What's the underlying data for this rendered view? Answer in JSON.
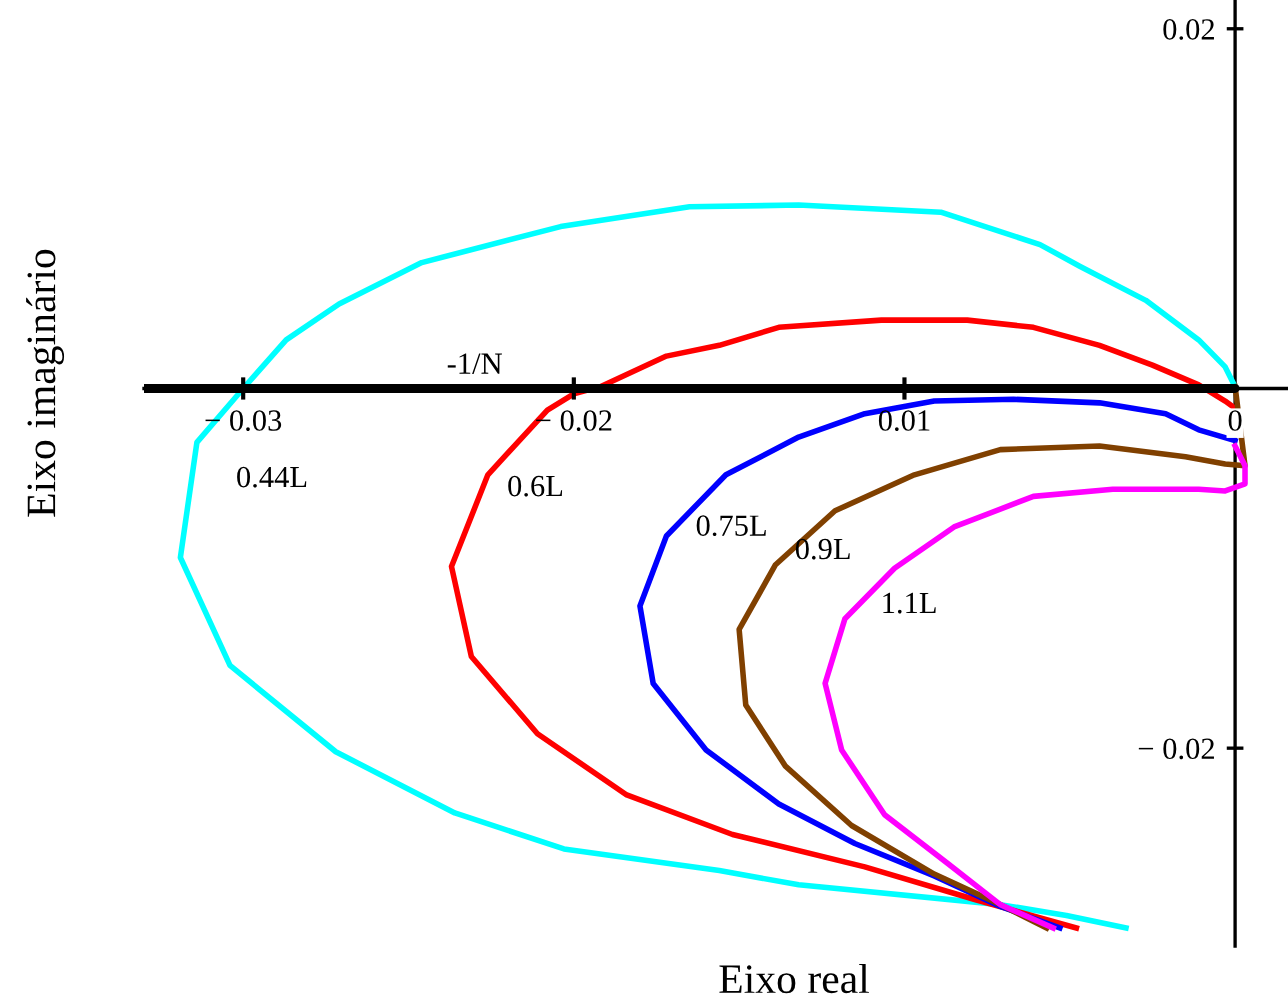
{
  "chart_data": {
    "type": "line",
    "xlabel": "Eixo real",
    "ylabel": "Eixo imaginário",
    "xlim": [
      -0.033,
      0.0016
    ],
    "ylim": [
      -0.031,
      0.0216
    ],
    "xticks": [
      {
        "value": -0.03,
        "label": "− 0.03"
      },
      {
        "value": -0.02,
        "label": "− 0.02"
      },
      {
        "value": -0.01,
        "label": "0.01"
      },
      {
        "value": 0,
        "label": "0"
      }
    ],
    "yticks": [
      {
        "value": -0.02,
        "label": "− 0.02"
      },
      {
        "value": 0.02,
        "label": "0.02"
      }
    ],
    "ref_lines": [
      {
        "axis": "y",
        "value": 0,
        "label": "-1/N",
        "color": "#000000"
      }
    ],
    "grid": false,
    "legend": false,
    "marker": "none",
    "line_style": "solid",
    "series": [
      {
        "name": "0.44L",
        "color": "#00ffff",
        "x": [
          0.0,
          -0.0003,
          -0.0011,
          -0.0027,
          -0.0047,
          -0.0059,
          -0.0089,
          -0.0132,
          -0.0165,
          -0.0204,
          -0.0246,
          -0.0271,
          -0.0287,
          -0.03,
          -0.0314,
          -0.0319,
          -0.0304,
          -0.0272,
          -0.0236,
          -0.0203,
          -0.0156,
          -0.0132,
          -0.0071,
          -0.0051,
          -0.0033
        ],
        "values": [
          0.0001,
          0.0012,
          0.0027,
          0.0049,
          0.0068,
          0.008,
          0.0098,
          0.0102,
          0.0101,
          0.009,
          0.007,
          0.0047,
          0.0027,
          0.0,
          -0.003,
          -0.0094,
          -0.0154,
          -0.0202,
          -0.0236,
          -0.0256,
          -0.0268,
          -0.0276,
          -0.0287,
          -0.0293,
          -0.03
        ]
      },
      {
        "name": "0.6L",
        "color": "#ff0000",
        "x": [
          0.0,
          -0.0003,
          -0.0011,
          -0.0025,
          -0.0041,
          -0.0061,
          -0.0081,
          -0.0107,
          -0.0138,
          -0.0156,
          -0.0172,
          -0.0192,
          -0.02,
          -0.0208,
          -0.0226,
          -0.0237,
          -0.0231,
          -0.0211,
          -0.0184,
          -0.0152,
          -0.0112,
          -0.0079,
          -0.0048
        ],
        "values": [
          -0.0011,
          -0.0007,
          0.0002,
          0.0013,
          0.0024,
          0.0034,
          0.0038,
          0.0038,
          0.0034,
          0.0024,
          0.0018,
          0.0001,
          -0.0003,
          -0.0012,
          -0.0048,
          -0.0099,
          -0.0149,
          -0.0192,
          -0.0226,
          -0.0248,
          -0.0266,
          -0.0284,
          -0.03
        ]
      },
      {
        "name": "0.75L",
        "color": "#0000ff",
        "x": [
          0.0,
          -0.0011,
          -0.0021,
          -0.0041,
          -0.0067,
          -0.0091,
          -0.0112,
          -0.0132,
          -0.0154,
          -0.0172,
          -0.018,
          -0.0176,
          -0.016,
          -0.0138,
          -0.0115,
          -0.0091,
          -0.0071,
          -0.0053
        ],
        "values": [
          -0.0029,
          -0.0023,
          -0.0014,
          -0.0008,
          -0.0006,
          -0.0007,
          -0.0014,
          -0.0027,
          -0.0048,
          -0.0082,
          -0.0121,
          -0.0164,
          -0.0201,
          -0.0231,
          -0.0253,
          -0.0271,
          -0.0288,
          -0.03
        ]
      },
      {
        "name": "0.9L",
        "color": "#804000",
        "x": [
          0.0,
          0.0003,
          -0.0003,
          -0.0015,
          -0.0041,
          -0.0071,
          -0.0097,
          -0.0121,
          -0.0139,
          -0.015,
          -0.0148,
          -0.0136,
          -0.0116,
          -0.0091,
          -0.0071,
          -0.0057
        ],
        "values": [
          0.0001,
          -0.0043,
          -0.0042,
          -0.0038,
          -0.0032,
          -0.0034,
          -0.0048,
          -0.0068,
          -0.0098,
          -0.0134,
          -0.0176,
          -0.021,
          -0.0243,
          -0.027,
          -0.0287,
          -0.03
        ]
      },
      {
        "name": "1.1L",
        "color": "#ff00ff",
        "x": [
          0.0,
          0.0003,
          0.0003,
          -0.0003,
          -0.0011,
          -0.0037,
          -0.0061,
          -0.0085,
          -0.0103,
          -0.0118,
          -0.0124,
          -0.0119,
          -0.0106,
          -0.0087,
          -0.0071,
          -0.0055
        ],
        "values": [
          -0.0032,
          -0.0043,
          -0.0053,
          -0.0057,
          -0.0056,
          -0.0056,
          -0.006,
          -0.0077,
          -0.01,
          -0.0128,
          -0.0164,
          -0.0201,
          -0.0237,
          -0.0264,
          -0.0287,
          -0.03
        ]
      }
    ]
  }
}
